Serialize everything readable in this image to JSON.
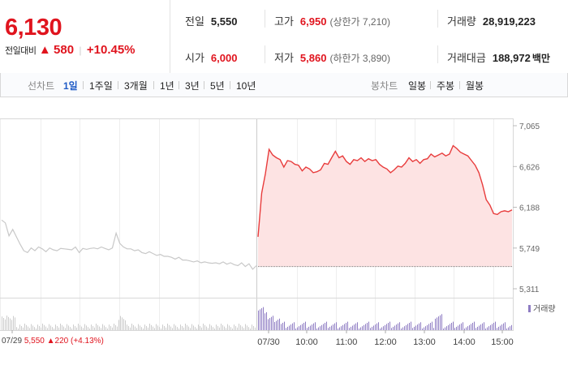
{
  "header": {
    "price": "6,130",
    "change_label": "전일대비",
    "change_arrow": "▲",
    "change_value": "580",
    "change_pct": "+10.45%"
  },
  "stats": {
    "prev_close": {
      "label": "전일",
      "value": "5,550"
    },
    "open": {
      "label": "시가",
      "value": "6,000"
    },
    "high": {
      "label": "고가",
      "value": "6,950",
      "sub": "(상한가 7,210)"
    },
    "low": {
      "label": "저가",
      "value": "5,860",
      "sub": "(하한가 3,890)"
    },
    "volume": {
      "label": "거래량",
      "value": "28,919,223"
    },
    "trade_amount": {
      "label": "거래대금",
      "value": "188,972",
      "unit": "백만"
    }
  },
  "tabs": {
    "line_label": "선차트",
    "line_tabs": [
      "1일",
      "1주일",
      "3개월",
      "1년",
      "3년",
      "5년",
      "10년"
    ],
    "active": "1일",
    "candle_label": "봉차트",
    "candle_tabs": [
      "일봉",
      "주봉",
      "월봉"
    ]
  },
  "chart_data": {
    "type": "line",
    "y_ticks": [
      "7,065",
      "6,626",
      "6,188",
      "5,749",
      "5,311"
    ],
    "y_range": [
      5311,
      7065
    ],
    "x_labels": [
      "07/29",
      "07/30",
      "10:00",
      "11:00",
      "12:00",
      "13:00",
      "14:00",
      "15:00"
    ],
    "baseline": 5550,
    "legend": "거래량",
    "prev_day_series": {
      "name": "07/29",
      "values": [
        6050,
        6020,
        5880,
        5950,
        5870,
        5790,
        5720,
        5700,
        5750,
        5720,
        5760,
        5740,
        5710,
        5750,
        5730,
        5720,
        5745,
        5740,
        5735,
        5730,
        5760,
        5700,
        5745,
        5735,
        5745,
        5750,
        5740,
        5760,
        5745,
        5730,
        5750,
        5910,
        5800,
        5760,
        5740,
        5740,
        5720,
        5730,
        5700,
        5690,
        5710,
        5690,
        5670,
        5680,
        5660,
        5660,
        5650,
        5630,
        5650,
        5620,
        5620,
        5610,
        5600,
        5610,
        5590,
        5600,
        5590,
        5585,
        5590,
        5580,
        5600,
        5575,
        5590,
        5570,
        5560,
        5590,
        5550,
        5580,
        5520,
        5560
      ]
    },
    "today_series": {
      "name": "07/30",
      "values": [
        5870,
        6340,
        6550,
        6810,
        6750,
        6720,
        6700,
        6620,
        6690,
        6680,
        6650,
        6640,
        6580,
        6620,
        6600,
        6560,
        6570,
        6590,
        6660,
        6650,
        6720,
        6790,
        6720,
        6740,
        6680,
        6650,
        6700,
        6690,
        6720,
        6680,
        6710,
        6690,
        6700,
        6650,
        6620,
        6600,
        6560,
        6590,
        6630,
        6620,
        6660,
        6720,
        6680,
        6700,
        6660,
        6700,
        6710,
        6760,
        6730,
        6750,
        6770,
        6740,
        6760,
        6850,
        6820,
        6780,
        6760,
        6740,
        6690,
        6640,
        6560,
        6430,
        6270,
        6210,
        6120,
        6110,
        6140,
        6150,
        6140,
        6160
      ]
    },
    "prev_day_close_line": 5550
  },
  "footer": {
    "prev_date": "07/29",
    "prev_price": "5,550",
    "prev_arrow": "▲",
    "prev_change": "220",
    "prev_pct": "(+4.13%)"
  },
  "colors": {
    "up": "#e0141e",
    "down": "#1f5bc6",
    "line_today": "#e83c3c",
    "fill_today": "#fde3e3",
    "line_prev": "#c8c8c8",
    "volume": "#8e7cc3"
  }
}
